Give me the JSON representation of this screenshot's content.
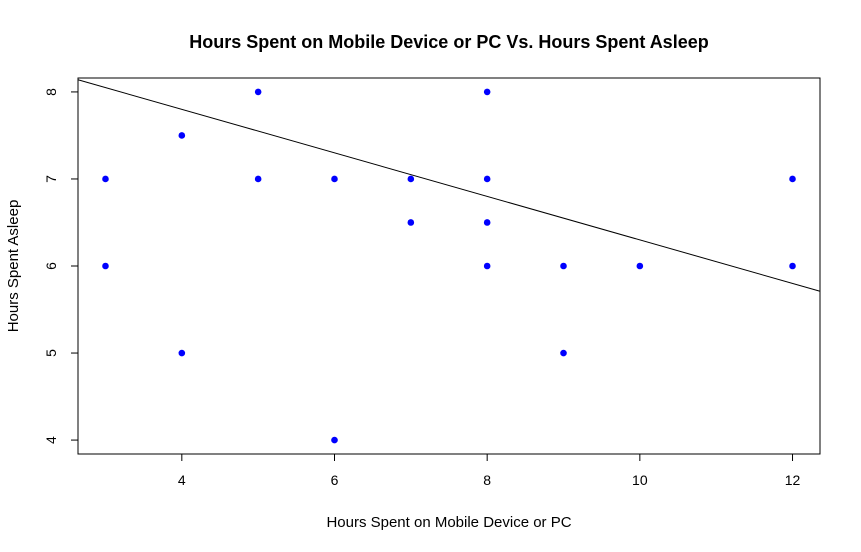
{
  "chart_data": {
    "type": "scatter",
    "title": "Hours Spent on Mobile Device or PC Vs. Hours Spent Asleep",
    "xlabel": "Hours Spent on Mobile Device or PC",
    "ylabel": "Hours Spent Asleep",
    "xlim": [
      2.64,
      12.36
    ],
    "ylim": [
      3.84,
      8.16
    ],
    "xticks": [
      4,
      6,
      8,
      10,
      12
    ],
    "yticks": [
      4,
      5,
      6,
      7,
      8
    ],
    "grid": false,
    "legend": "none",
    "point_color": "#0000ff",
    "line_color": "#000000",
    "points": [
      {
        "x": 3,
        "y": 7
      },
      {
        "x": 3,
        "y": 6
      },
      {
        "x": 4,
        "y": 7.5
      },
      {
        "x": 4,
        "y": 5
      },
      {
        "x": 5,
        "y": 8
      },
      {
        "x": 5,
        "y": 7
      },
      {
        "x": 6,
        "y": 7
      },
      {
        "x": 6,
        "y": 4
      },
      {
        "x": 7,
        "y": 7
      },
      {
        "x": 7,
        "y": 6.5
      },
      {
        "x": 8,
        "y": 8
      },
      {
        "x": 8,
        "y": 7
      },
      {
        "x": 8,
        "y": 6.5
      },
      {
        "x": 8,
        "y": 6
      },
      {
        "x": 9,
        "y": 6
      },
      {
        "x": 9,
        "y": 5
      },
      {
        "x": 10,
        "y": 6
      },
      {
        "x": 12,
        "y": 7
      },
      {
        "x": 12,
        "y": 6
      }
    ],
    "regression_line": {
      "intercept": 8.8,
      "slope": -0.25
    }
  }
}
